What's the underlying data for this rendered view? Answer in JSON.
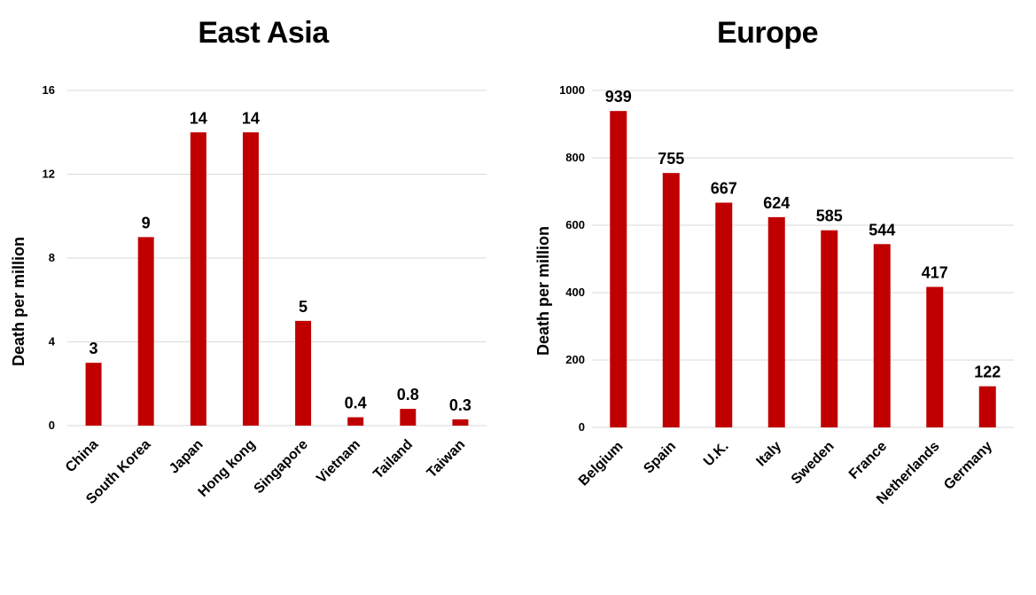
{
  "colors": {
    "bar": "#c00000",
    "grid": "#d9d9d9",
    "text": "#000000"
  },
  "chart_data": [
    {
      "type": "bar",
      "title": "East Asia",
      "ylabel": "Death per million",
      "xlabel": "",
      "categories": [
        "China",
        "South Korea",
        "Japan",
        "Hong kong",
        "Singapore",
        "Vietnam",
        "Tailand",
        "Taiwan"
      ],
      "values": [
        3,
        9,
        14,
        14,
        5,
        0.4,
        0.8,
        0.3
      ],
      "data_labels": [
        "3",
        "9",
        "14",
        "14",
        "5",
        "0.4",
        "0.8",
        "0.3"
      ],
      "ylim": [
        0,
        16
      ],
      "yticks": [
        0,
        4,
        8,
        12,
        16
      ],
      "grid": true,
      "legend": "none"
    },
    {
      "type": "bar",
      "title": "Europe",
      "ylabel": "Death per million",
      "xlabel": "",
      "categories": [
        "Belgium",
        "Spain",
        "U.K.",
        "Italy",
        "Sweden",
        "France",
        "Netherlands",
        "Germany"
      ],
      "values": [
        939,
        755,
        667,
        624,
        585,
        544,
        417,
        122
      ],
      "data_labels": [
        "939",
        "755",
        "667",
        "624",
        "585",
        "544",
        "417",
        "122"
      ],
      "ylim": [
        0,
        1000
      ],
      "yticks": [
        0,
        200,
        400,
        600,
        800,
        1000
      ],
      "grid": true,
      "legend": "none"
    }
  ]
}
